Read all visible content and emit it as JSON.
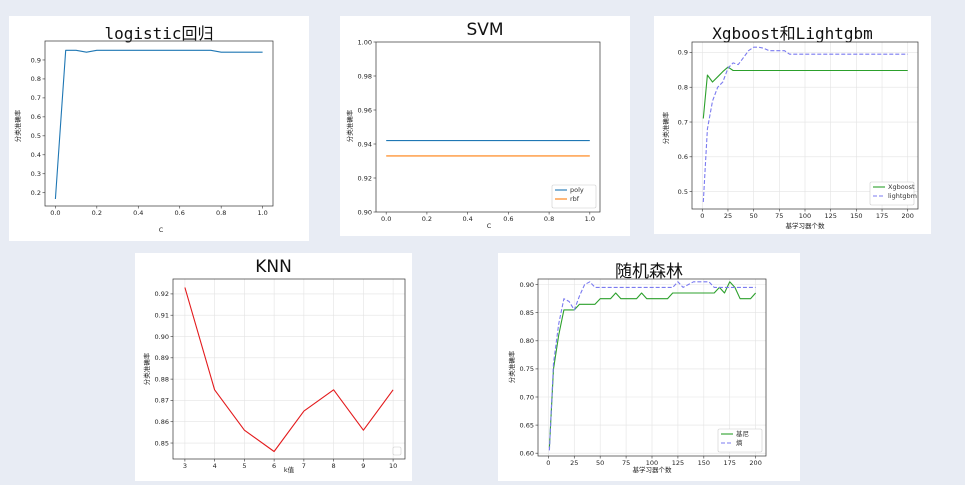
{
  "chart_data": [
    {
      "type": "line",
      "title": "logistic回归",
      "xlabel": "C",
      "ylabel": "分类准确率",
      "xlim": [
        -0.05,
        1.05
      ],
      "ylim": [
        0.13,
        1.0
      ],
      "xticks": [
        "0.0",
        "0.2",
        "0.4",
        "0.6",
        "0.8",
        "1.0"
      ],
      "xtick_values": [
        0.0,
        0.2,
        0.4,
        0.6,
        0.8,
        1.0
      ],
      "yticks": [
        "0.2",
        "0.3",
        "0.4",
        "0.5",
        "0.6",
        "0.7",
        "0.8",
        "0.9"
      ],
      "ytick_values": [
        0.2,
        0.3,
        0.4,
        0.5,
        0.6,
        0.7,
        0.8,
        0.9
      ],
      "grid": false,
      "series": [
        {
          "color": "#1f77b4",
          "dash": "",
          "x": [
            0.0,
            0.05,
            0.1,
            0.15,
            0.2,
            0.25,
            0.3,
            0.35,
            0.4,
            0.45,
            0.5,
            0.55,
            0.6,
            0.65,
            0.7,
            0.75,
            0.8,
            0.85,
            0.9,
            0.95,
            1.0
          ],
          "y": [
            0.167,
            0.951,
            0.951,
            0.941,
            0.951,
            0.951,
            0.951,
            0.951,
            0.951,
            0.951,
            0.951,
            0.951,
            0.951,
            0.951,
            0.951,
            0.951,
            0.941,
            0.941,
            0.941,
            0.941,
            0.941
          ]
        }
      ]
    },
    {
      "type": "line",
      "title": "SVM",
      "xlabel": "C",
      "ylabel": "分类准确率",
      "xlim": [
        -0.05,
        1.05
      ],
      "ylim": [
        0.9,
        1.0
      ],
      "xticks": [
        "0.0",
        "0.2",
        "0.4",
        "0.6",
        "0.8",
        "1.0"
      ],
      "xtick_values": [
        0.0,
        0.2,
        0.4,
        0.6,
        0.8,
        1.0
      ],
      "yticks": [
        "0.90",
        "0.92",
        "0.94",
        "0.96",
        "0.98",
        "1.00"
      ],
      "ytick_values": [
        0.9,
        0.92,
        0.94,
        0.96,
        0.98,
        1.0
      ],
      "grid": false,
      "legend_position": "lower-right",
      "series": [
        {
          "name": "poly",
          "color": "#1f77b4",
          "dash": "",
          "x": [
            0.0,
            1.0
          ],
          "y": [
            0.942,
            0.942
          ]
        },
        {
          "name": "rbf",
          "color": "#ff7f0e",
          "dash": "",
          "x": [
            0.0,
            1.0
          ],
          "y": [
            0.933,
            0.933
          ]
        }
      ]
    },
    {
      "type": "line",
      "title": "Xgboost和Lightgbm",
      "xlabel": "基学习器个数",
      "ylabel": "分类准确率",
      "xlim": [
        -10,
        210
      ],
      "ylim": [
        0.45,
        0.93
      ],
      "xticks": [
        "0",
        "25",
        "50",
        "75",
        "100",
        "125",
        "150",
        "175",
        "200"
      ],
      "xtick_values": [
        0,
        25,
        50,
        75,
        100,
        125,
        150,
        175,
        200
      ],
      "yticks": [
        "0.5",
        "0.6",
        "0.7",
        "0.8",
        "0.9"
      ],
      "ytick_values": [
        0.5,
        0.6,
        0.7,
        0.8,
        0.9
      ],
      "grid": true,
      "legend_position": "lower-right",
      "series": [
        {
          "name": "Xgboost",
          "color": "#2ca02c",
          "dash": "",
          "x": [
            1,
            5,
            10,
            15,
            20,
            25,
            30,
            40,
            50,
            60,
            70,
            80,
            100,
            125,
            150,
            175,
            200
          ],
          "y": [
            0.71,
            0.835,
            0.815,
            0.83,
            0.845,
            0.858,
            0.848,
            0.848,
            0.848,
            0.848,
            0.848,
            0.848,
            0.848,
            0.848,
            0.848,
            0.848,
            0.848
          ]
        },
        {
          "name": "lightgbm",
          "color": "#7b7bf0",
          "dash": "4,2",
          "x": [
            1,
            5,
            10,
            15,
            20,
            25,
            30,
            35,
            40,
            45,
            50,
            55,
            60,
            65,
            70,
            80,
            85,
            90,
            100,
            125,
            150,
            175,
            200
          ],
          "y": [
            0.47,
            0.68,
            0.76,
            0.8,
            0.815,
            0.855,
            0.87,
            0.865,
            0.885,
            0.905,
            0.915,
            0.915,
            0.912,
            0.905,
            0.905,
            0.905,
            0.895,
            0.895,
            0.895,
            0.895,
            0.895,
            0.895,
            0.895
          ]
        }
      ]
    },
    {
      "type": "line",
      "title": "KNN",
      "xlabel": "k值",
      "ylabel": "分类准确率",
      "xlim": [
        2.6,
        10.4
      ],
      "ylim": [
        0.8425,
        0.927
      ],
      "xticks": [
        "3",
        "4",
        "5",
        "6",
        "7",
        "8",
        "9",
        "10"
      ],
      "xtick_values": [
        3,
        4,
        5,
        6,
        7,
        8,
        9,
        10
      ],
      "yticks": [
        "0.85",
        "0.86",
        "0.87",
        "0.88",
        "0.89",
        "0.90",
        "0.91",
        "0.92"
      ],
      "ytick_values": [
        0.85,
        0.86,
        0.87,
        0.88,
        0.89,
        0.9,
        0.91,
        0.92
      ],
      "grid": true,
      "legend_position": "lower-right",
      "series": [
        {
          "color": "#e31a1c",
          "dash": "",
          "x": [
            3,
            4,
            5,
            6,
            7,
            8,
            9,
            10
          ],
          "y": [
            0.923,
            0.875,
            0.856,
            0.846,
            0.865,
            0.875,
            0.856,
            0.875
          ]
        }
      ]
    },
    {
      "type": "line",
      "title": "随机森林",
      "xlabel": "基学习器个数",
      "ylabel": "分类准确率",
      "xlim": [
        -10,
        210
      ],
      "ylim": [
        0.595,
        0.91
      ],
      "xticks": [
        "0",
        "25",
        "50",
        "75",
        "100",
        "125",
        "150",
        "175",
        "200"
      ],
      "xtick_values": [
        0,
        25,
        50,
        75,
        100,
        125,
        150,
        175,
        200
      ],
      "yticks": [
        "0.60",
        "0.65",
        "0.70",
        "0.75",
        "0.80",
        "0.85",
        "0.90"
      ],
      "ytick_values": [
        0.6,
        0.65,
        0.7,
        0.75,
        0.8,
        0.85,
        0.9
      ],
      "grid": true,
      "legend_position": "lower-right",
      "series": [
        {
          "name": "基尼",
          "color": "#2ca02c",
          "dash": "",
          "x": [
            1,
            5,
            10,
            15,
            20,
            25,
            30,
            35,
            40,
            45,
            50,
            55,
            60,
            65,
            70,
            75,
            80,
            85,
            90,
            95,
            100,
            110,
            115,
            120,
            125,
            130,
            140,
            150,
            160,
            165,
            170,
            175,
            180,
            185,
            190,
            195,
            200
          ],
          "y": [
            0.61,
            0.75,
            0.81,
            0.855,
            0.855,
            0.855,
            0.865,
            0.865,
            0.865,
            0.865,
            0.875,
            0.875,
            0.875,
            0.885,
            0.875,
            0.875,
            0.875,
            0.875,
            0.885,
            0.875,
            0.875,
            0.875,
            0.875,
            0.885,
            0.885,
            0.885,
            0.885,
            0.885,
            0.885,
            0.895,
            0.885,
            0.905,
            0.895,
            0.875,
            0.875,
            0.875,
            0.885
          ]
        },
        {
          "name": "熵",
          "color": "#7b7bf0",
          "dash": "4,2",
          "x": [
            1,
            5,
            10,
            15,
            20,
            25,
            30,
            35,
            40,
            45,
            50,
            60,
            70,
            80,
            90,
            100,
            110,
            120,
            125,
            130,
            140,
            150,
            155,
            160,
            170,
            180,
            190,
            200
          ],
          "y": [
            0.605,
            0.76,
            0.83,
            0.875,
            0.87,
            0.855,
            0.88,
            0.9,
            0.905,
            0.895,
            0.895,
            0.895,
            0.895,
            0.895,
            0.895,
            0.895,
            0.895,
            0.895,
            0.905,
            0.895,
            0.905,
            0.905,
            0.905,
            0.895,
            0.895,
            0.895,
            0.895,
            0.895
          ]
        }
      ]
    }
  ]
}
